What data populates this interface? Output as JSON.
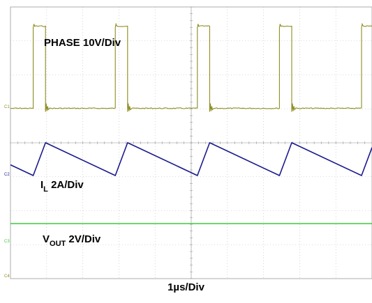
{
  "chart_data": {
    "type": "line",
    "title": "",
    "xlabel": "1µs/Div",
    "grid": true,
    "time_divisions": 10,
    "vertical_divisions": 8,
    "switching_period_div": 2.27,
    "series": [
      {
        "name": "PHASE 10V/Div",
        "label_main": "PHASE 10V/Div",
        "channel_marker": "C1",
        "color": "#8c8c1e",
        "units": "V",
        "scale_per_div": 10,
        "shape": "square",
        "low_value": 0,
        "high_value": 30,
        "rise_times_div": [
          0.63,
          2.9,
          5.17,
          7.44,
          9.71
        ],
        "pulse_width_div": 0.34
      },
      {
        "name": "IL 2A/Div",
        "label_main": "I",
        "label_sub": "L",
        "label_suffix": " 2A/Div",
        "channel_marker": "C2",
        "color": "#1a1a8c",
        "units": "A",
        "scale_per_div": 2,
        "shape": "triangle",
        "peak_times_div": [
          0.97,
          3.24,
          5.51,
          7.78,
          10.05
        ],
        "valley_times_div": [
          0.63,
          2.9,
          5.17,
          7.44,
          9.71
        ],
        "ripple_div": 1.05
      },
      {
        "name": "VOUT 2V/Div",
        "label_main": "V",
        "label_sub": "OUT",
        "label_suffix": " 2V/Div",
        "channel_marker": "C3",
        "color": "#3ccc3c",
        "units": "V",
        "scale_per_div": 2,
        "shape": "dc"
      }
    ],
    "extra_markers": [
      {
        "channel_marker": "C4",
        "color": "#8c8c1e"
      }
    ]
  }
}
